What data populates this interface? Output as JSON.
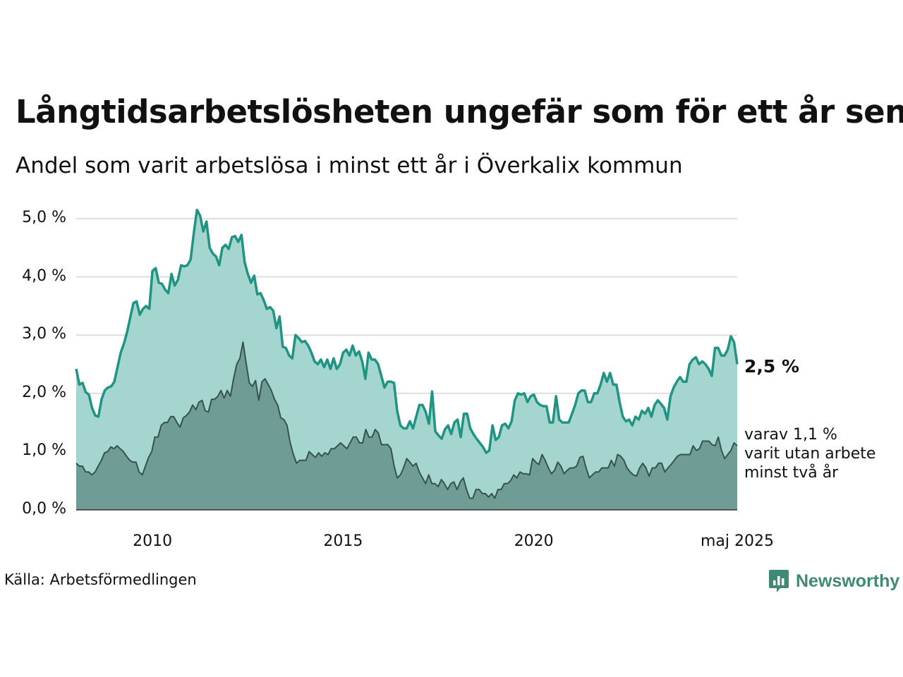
{
  "title": "Långtidsarbetslösheten ungefär som för ett år sen",
  "subtitle": "Andel som varit arbetslösa i minst ett år i Överkalix kommun",
  "source": "Källa: Arbetsförmedlingen",
  "brand": "Newsworthy",
  "end_label": "2,5 %",
  "sub_label_lines": [
    "varav 1,1 %",
    "varit utan arbete",
    "minst två år"
  ],
  "colors": {
    "main_line": "#1f9482",
    "main_fill": "#a4d6cf",
    "sub_line": "#37534d",
    "sub_fill": "#6f9d95",
    "grid": "#dddddd",
    "brand": "#3f8a74"
  },
  "chart_data": {
    "type": "area",
    "title": "Långtidsarbetslösheten ungefär som för ett år sen",
    "subtitle": "Andel som varit arbetslösa i minst ett år i Överkalix kommun",
    "x_start": "2008-01",
    "x_end": "2025-05",
    "frequency": "monthly",
    "x_ticks": [
      {
        "label": "2010",
        "x": "2010-01"
      },
      {
        "label": "2015",
        "x": "2015-01"
      },
      {
        "label": "2020",
        "x": "2020-01"
      },
      {
        "label": "maj 2025",
        "x": "2025-05"
      }
    ],
    "y_ticks": [
      {
        "value": 0,
        "label": "0,0 %"
      },
      {
        "value": 1,
        "label": "1,0 %"
      },
      {
        "value": 2,
        "label": "2,0 %"
      },
      {
        "value": 3,
        "label": "3,0 %"
      },
      {
        "value": 4,
        "label": "4,0 %"
      },
      {
        "value": 5,
        "label": "5,0 %"
      }
    ],
    "ylim": [
      0,
      5
    ],
    "grid": true,
    "series": [
      {
        "values": [
          2.42,
          2.15,
          2.18,
          2.02,
          1.98,
          1.75,
          1.62,
          1.6,
          1.9,
          2.05,
          2.1,
          2.12,
          2.2,
          2.45,
          2.7,
          2.85,
          3.05,
          3.3,
          3.55,
          3.58,
          3.35,
          3.45,
          3.5,
          3.45,
          4.1,
          4.15,
          3.9,
          3.88,
          3.78,
          3.72,
          4.05,
          3.85,
          3.95,
          4.2,
          4.18,
          4.2,
          4.3,
          4.75,
          5.15,
          5.05,
          4.78,
          4.95,
          4.5,
          4.4,
          4.35,
          4.2,
          4.5,
          4.55,
          4.48,
          4.68,
          4.7,
          4.6,
          4.72,
          4.25,
          4.05,
          3.9,
          4.02,
          3.7,
          3.72,
          3.6,
          3.45,
          3.48,
          3.42,
          3.12,
          3.32,
          2.8,
          2.78,
          2.65,
          2.6,
          3.0,
          2.95,
          2.88,
          2.9,
          2.82,
          2.7,
          2.55,
          2.5,
          2.58,
          2.45,
          2.58,
          2.42,
          2.6,
          2.42,
          2.5,
          2.7,
          2.75,
          2.65,
          2.82,
          2.65,
          2.72,
          2.55,
          2.25,
          2.7,
          2.58,
          2.58,
          2.5,
          2.3,
          2.1,
          2.2,
          2.2,
          2.18,
          1.7,
          1.45,
          1.4,
          1.4,
          1.52,
          1.4,
          1.6,
          1.8,
          1.8,
          1.68,
          1.48,
          2.03,
          1.35,
          1.28,
          1.22,
          1.38,
          1.45,
          1.3,
          1.5,
          1.55,
          1.25,
          1.65,
          1.65,
          1.4,
          1.3,
          1.22,
          1.15,
          1.08,
          0.98,
          1.02,
          1.45,
          1.2,
          1.25,
          1.45,
          1.48,
          1.4,
          1.52,
          1.88,
          2.0,
          1.98,
          2.0,
          1.85,
          1.95,
          1.98,
          1.85,
          1.8,
          1.78,
          1.78,
          1.5,
          1.5,
          1.95,
          1.55,
          1.5,
          1.5,
          1.5,
          1.65,
          1.8,
          2.0,
          2.05,
          2.05,
          1.85,
          1.85,
          2.0,
          2.0,
          2.15,
          2.35,
          2.2,
          2.35,
          2.15,
          2.15,
          1.85,
          1.6,
          1.52,
          1.55,
          1.45,
          1.6,
          1.55,
          1.7,
          1.65,
          1.75,
          1.6,
          1.8,
          1.88,
          1.82,
          1.75,
          1.55,
          1.95,
          2.1,
          2.2,
          2.28,
          2.2,
          2.2,
          2.5,
          2.58,
          2.62,
          2.5,
          2.55,
          2.5,
          2.42,
          2.3,
          2.78,
          2.78,
          2.65,
          2.65,
          2.75,
          2.98,
          2.88,
          2.5
        ]
      },
      {
        "values": [
          0.8,
          0.75,
          0.75,
          0.65,
          0.65,
          0.6,
          0.65,
          0.75,
          0.85,
          0.98,
          1.0,
          1.08,
          1.05,
          1.1,
          1.05,
          1.0,
          0.92,
          0.85,
          0.82,
          0.82,
          0.65,
          0.6,
          0.75,
          0.9,
          1.0,
          1.25,
          1.25,
          1.45,
          1.5,
          1.5,
          1.6,
          1.6,
          1.5,
          1.42,
          1.58,
          1.62,
          1.68,
          1.8,
          1.72,
          1.85,
          1.88,
          1.7,
          1.68,
          1.9,
          1.9,
          1.95,
          2.05,
          1.92,
          2.05,
          1.95,
          2.25,
          2.5,
          2.6,
          2.88,
          2.52,
          2.18,
          2.12,
          2.22,
          1.88,
          2.2,
          2.25,
          2.15,
          2.05,
          1.9,
          1.8,
          1.58,
          1.55,
          1.45,
          1.15,
          0.95,
          0.8,
          0.85,
          0.85,
          0.85,
          1.0,
          0.95,
          0.9,
          0.98,
          0.92,
          0.98,
          0.95,
          1.05,
          1.05,
          1.1,
          1.15,
          1.1,
          1.05,
          1.15,
          1.25,
          1.25,
          1.15,
          1.15,
          1.38,
          1.25,
          1.25,
          1.38,
          1.32,
          1.12,
          1.12,
          1.12,
          1.05,
          0.75,
          0.55,
          0.6,
          0.72,
          0.88,
          0.82,
          0.75,
          0.8,
          0.65,
          0.55,
          0.45,
          0.6,
          0.45,
          0.45,
          0.4,
          0.52,
          0.45,
          0.35,
          0.45,
          0.48,
          0.35,
          0.48,
          0.55,
          0.35,
          0.2,
          0.2,
          0.35,
          0.35,
          0.28,
          0.28,
          0.22,
          0.28,
          0.2,
          0.35,
          0.35,
          0.45,
          0.45,
          0.5,
          0.6,
          0.55,
          0.65,
          0.62,
          0.62,
          0.6,
          0.88,
          0.82,
          0.78,
          0.95,
          0.85,
          0.72,
          0.62,
          0.68,
          0.82,
          0.75,
          0.62,
          0.68,
          0.72,
          0.72,
          0.75,
          0.9,
          0.92,
          0.72,
          0.55,
          0.6,
          0.65,
          0.65,
          0.72,
          0.72,
          0.72,
          0.85,
          0.75,
          0.95,
          0.92,
          0.85,
          0.72,
          0.65,
          0.6,
          0.58,
          0.72,
          0.8,
          0.72,
          0.58,
          0.72,
          0.72,
          0.8,
          0.8,
          0.65,
          0.72,
          0.78,
          0.85,
          0.92,
          0.95,
          0.95,
          0.95,
          0.95,
          1.1,
          1.02,
          1.05,
          1.18,
          1.18,
          1.18,
          1.12,
          1.1,
          1.25,
          1.02,
          0.88,
          0.95,
          1.02,
          1.15,
          1.1
        ]
      }
    ]
  }
}
